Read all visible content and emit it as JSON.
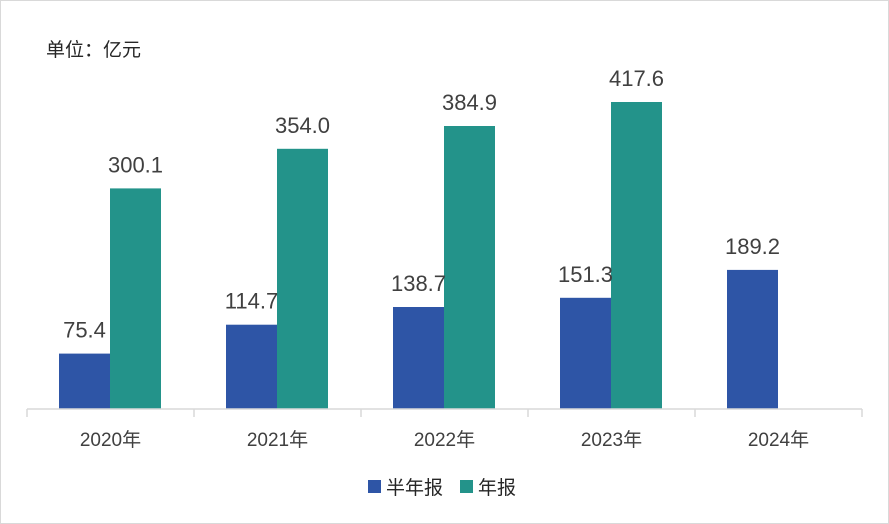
{
  "chart_data": {
    "type": "bar",
    "unit_label": "单位：亿元",
    "categories": [
      "2020年",
      "2021年",
      "2022年",
      "2023年",
      "2024年"
    ],
    "series": [
      {
        "name": "半年报",
        "color": "#2e55a6",
        "values": [
          75.4,
          114.7,
          138.7,
          151.3,
          189.2
        ],
        "labels": [
          "75.4",
          "114.7",
          "138.7",
          "151.3",
          "189.2"
        ]
      },
      {
        "name": "年报",
        "color": "#23938a",
        "values": [
          300.1,
          354.0,
          384.9,
          417.6,
          null
        ],
        "labels": [
          "300.1",
          "354.0",
          "384.9",
          "417.6",
          ""
        ]
      }
    ],
    "ylim": [
      0,
      417.6
    ],
    "grid": false,
    "legend_position": "bottom"
  }
}
